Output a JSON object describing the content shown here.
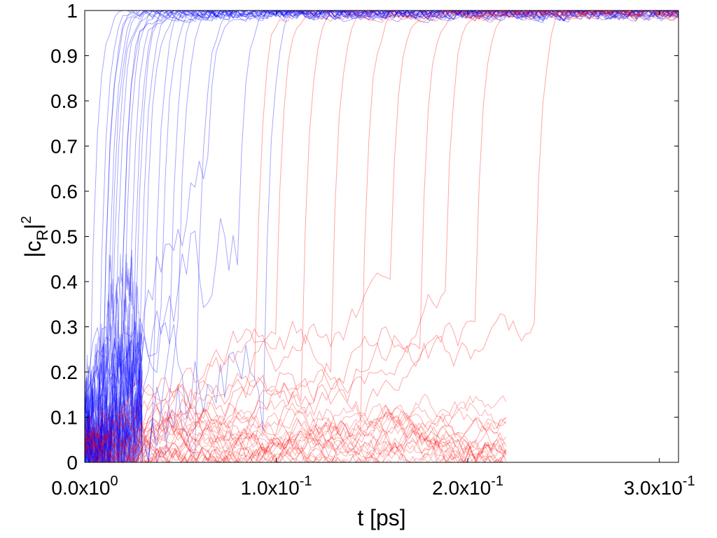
{
  "chart_data": {
    "type": "line",
    "xlabel": "t [ps]",
    "ylabel": {
      "base": "|c",
      "subscript": "R",
      "close": "|",
      "superscript": "2"
    },
    "xlim": [
      0,
      0.31
    ],
    "ylim": [
      0,
      1
    ],
    "x_ticks": [
      {
        "value": 0.0,
        "mantissa": "0.0x10",
        "exponent": "0"
      },
      {
        "value": 0.1,
        "mantissa": "1.0x10",
        "exponent": "-1"
      },
      {
        "value": 0.2,
        "mantissa": "2.0x10",
        "exponent": "-1"
      },
      {
        "value": 0.3,
        "mantissa": "3.0x10",
        "exponent": "-1"
      }
    ],
    "y_ticks": [
      {
        "value": 0,
        "label": "0"
      },
      {
        "value": 0.1,
        "label": "0.1"
      },
      {
        "value": 0.2,
        "label": "0.2"
      },
      {
        "value": 0.3,
        "label": "0.3"
      },
      {
        "value": 0.4,
        "label": "0.4"
      },
      {
        "value": 0.5,
        "label": "0.5"
      },
      {
        "value": 0.6,
        "label": "0.6"
      },
      {
        "value": 0.7,
        "label": "0.7"
      },
      {
        "value": 0.8,
        "label": "0.8"
      },
      {
        "value": 0.9,
        "label": "0.9"
      },
      {
        "value": 1,
        "label": "1"
      }
    ],
    "grid": false,
    "legend": "none",
    "colors": {
      "blue": "#0000ff",
      "red": "#ff0000"
    },
    "series": [
      {
        "color": "blue",
        "initial_value": 0.05,
        "transition_times": [
          0.004,
          0.007,
          0.009,
          0.011,
          0.012,
          0.014,
          0.015,
          0.016,
          0.018,
          0.019,
          0.021,
          0.023,
          0.025,
          0.027,
          0.03,
          0.033,
          0.036,
          0.04,
          0.045,
          0.05,
          0.058,
          0.065,
          0.08,
          0.095
        ]
      },
      {
        "color": "red",
        "initial_value": 0.05,
        "transition_times": [
          0.09,
          0.1,
          0.115,
          0.13,
          0.145,
          0.16,
          0.175,
          0.19,
          0.205,
          0.235
        ]
      }
    ]
  }
}
